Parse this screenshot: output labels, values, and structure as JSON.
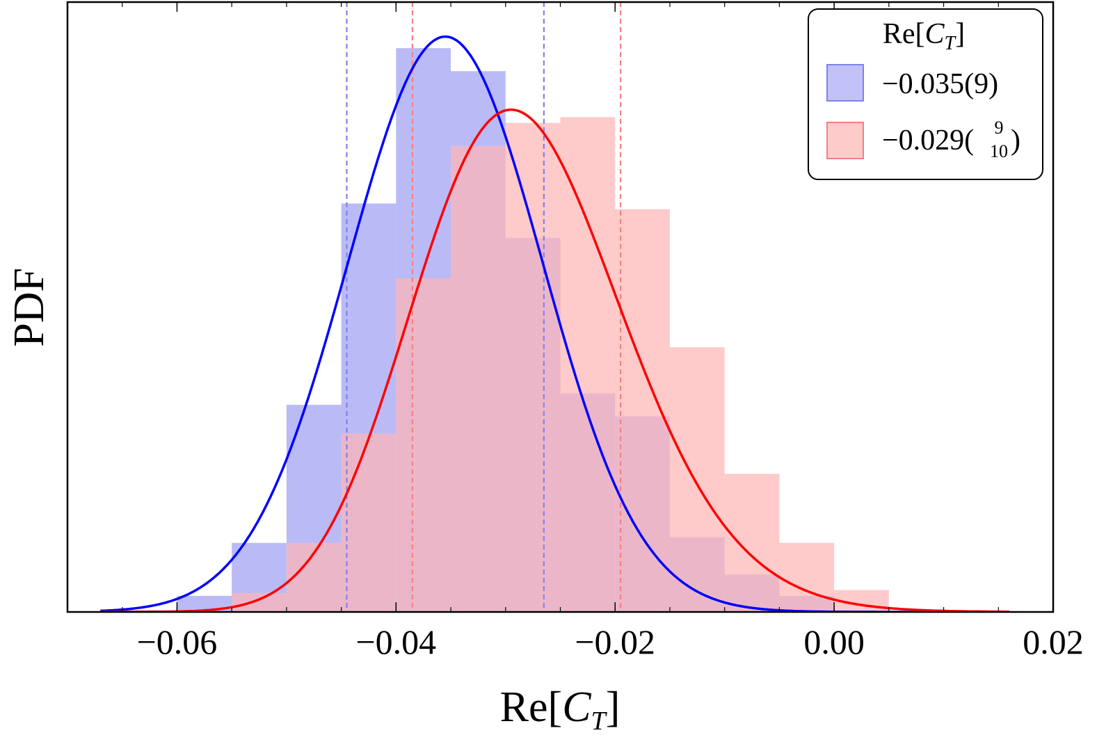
{
  "chart_data": {
    "type": "histogram_with_density",
    "xlabel": {
      "main": "Re[",
      "sym": "C",
      "sub": "T",
      "close": "]"
    },
    "ylabel": "PDF",
    "xlim": [
      -0.07,
      0.02
    ],
    "ylim": [
      0,
      1.06
    ],
    "xticks": [
      {
        "value": -0.06,
        "label": "−0.06"
      },
      {
        "value": -0.04,
        "label": "−0.04"
      },
      {
        "value": -0.02,
        "label": "−0.02"
      },
      {
        "value": 0.0,
        "label": "0.00"
      },
      {
        "value": 0.02,
        "label": "0.02"
      }
    ],
    "bin_edges": [
      -0.065,
      -0.06,
      -0.055,
      -0.05,
      -0.045,
      -0.04,
      -0.035,
      -0.03,
      -0.025,
      -0.02,
      -0.015,
      -0.01,
      -0.005,
      0.0,
      0.005
    ],
    "legend": {
      "title": {
        "main": "Re[",
        "sym": "C",
        "sub": "T",
        "close": "]"
      },
      "position": "top-right"
    },
    "series": [
      {
        "name": "blue",
        "label_main": "−0.035(9)",
        "label_sup": "",
        "label_sub": "",
        "label_close": "",
        "fill_color": "#aeaef5",
        "line_color": "#0000ff",
        "dash_color": "#8080ee",
        "hist": [
          0.003,
          0.028,
          0.12,
          0.36,
          0.71,
          0.98,
          0.94,
          0.65,
          0.38,
          0.34,
          0.13,
          0.065,
          0.028,
          0.0
        ],
        "mean": -0.0355,
        "sigma": 0.0089,
        "skew": 0.0,
        "peak": 1.0,
        "interval": [
          -0.0445,
          -0.0265
        ]
      },
      {
        "name": "red",
        "label_main": "−0.029(",
        "label_sup": "9",
        "label_sub": "10",
        "label_close": ")",
        "fill_color": "#fdb5b5",
        "line_color": "#ff0000",
        "dash_color": "#f48080",
        "hist": [
          0.0,
          0.0,
          0.033,
          0.12,
          0.31,
          0.58,
          0.81,
          0.85,
          0.86,
          0.7,
          0.46,
          0.24,
          0.12,
          0.038
        ],
        "mean": -0.0295,
        "sigma": 0.0095,
        "skew": 0.045,
        "peak": 0.873,
        "interval": [
          -0.0385,
          -0.0195
        ]
      }
    ]
  }
}
